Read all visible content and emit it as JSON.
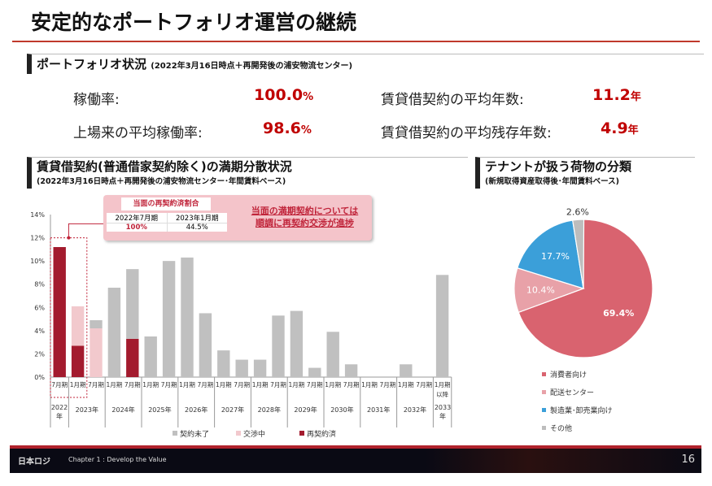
{
  "title": "安定的なポートフォリオ運営の継続",
  "portfolio": {
    "heading": "ポートフォリオ状況",
    "note": "(2022年3月16日時点＋再開発後の浦安物流センター)",
    "metrics": [
      {
        "label": "稼働率:",
        "value": "100.0",
        "unit": "%"
      },
      {
        "label": "上場来の平均稼働率:",
        "value": "98.6",
        "unit": "%"
      },
      {
        "label": "賃貸借契約の平均年数:",
        "value": "11.2",
        "unit": "年"
      },
      {
        "label": "賃貸借契約の平均残存年数:",
        "value": "4.9",
        "unit": "年"
      }
    ]
  },
  "expiry": {
    "heading": "賃貸借契約(普通借家契約除く)の満期分散状況",
    "note": "(2022年3月16日時点＋再開発後の浦安物流センター･年間賃料ベース)",
    "callout": {
      "title": "当面の再契約済割合",
      "col1": "2022年7月期",
      "col2": "2023年1月期",
      "val1": "100%",
      "val2": "44.5%",
      "message_line1": "当面の満期契約については",
      "message_line2": "順調に再契約交渉が進捗"
    }
  },
  "tenant": {
    "heading": "テナントが扱う荷物の分類",
    "note": "(新規取得資産取得後･年間賃料ベース)"
  },
  "chart_data": [
    {
      "type": "bar",
      "stacked": true,
      "ylim": [
        0,
        14
      ],
      "yticks": [
        "0%",
        "2%",
        "4%",
        "6%",
        "8%",
        "10%",
        "12%",
        "14%"
      ],
      "categories": [
        "7月期",
        "1月期",
        "7月期",
        "1月期",
        "7月期",
        "1月期",
        "7月期",
        "1月期",
        "7月期",
        "1月期",
        "7月期",
        "1月期",
        "7月期",
        "1月期",
        "7月期",
        "1月期",
        "7月期",
        "1月期",
        "7月期",
        "1月期",
        "7月期",
        "1月期以降"
      ],
      "years": [
        {
          "label": "2022年",
          "span": 1
        },
        {
          "label": "2023年",
          "span": 2
        },
        {
          "label": "2024年",
          "span": 2
        },
        {
          "label": "2025年",
          "span": 2
        },
        {
          "label": "2026年",
          "span": 2
        },
        {
          "label": "2027年",
          "span": 2
        },
        {
          "label": "2028年",
          "span": 2
        },
        {
          "label": "2029年",
          "span": 2
        },
        {
          "label": "2030年",
          "span": 2
        },
        {
          "label": "2031年",
          "span": 2
        },
        {
          "label": "2032年",
          "span": 2
        },
        {
          "label": "2033年",
          "span": 1
        }
      ],
      "series": [
        {
          "name": "再契約済",
          "color": "#a31b2e",
          "values": [
            11.2,
            2.7,
            0,
            0,
            3.3,
            0,
            0,
            0,
            0,
            0,
            0,
            0,
            0,
            0,
            0,
            0,
            0,
            0,
            0,
            0,
            0,
            0
          ]
        },
        {
          "name": "交渉中",
          "color": "#f2c9cd",
          "values": [
            0,
            3.4,
            4.2,
            0,
            0,
            0,
            0,
            0,
            0,
            0,
            0,
            0,
            0,
            0,
            0,
            0,
            0,
            0,
            0,
            0,
            0,
            0
          ]
        },
        {
          "name": "契約未了",
          "color": "#c0c0c0",
          "values": [
            0,
            0,
            0.7,
            7.7,
            6.0,
            3.5,
            10.0,
            10.3,
            5.5,
            2.3,
            1.5,
            1.5,
            5.3,
            5.7,
            0.8,
            3.9,
            1.1,
            0,
            0,
            1.1,
            0,
            8.8
          ]
        }
      ],
      "legend_order": [
        "契約未了",
        "交渉中",
        "再契約済"
      ],
      "legend": "bottom"
    },
    {
      "type": "pie",
      "start": "top",
      "direction": "clockwise",
      "slices": [
        {
          "name": "消費者向け",
          "value": 69.4,
          "label": "69.4%",
          "color": "#d9636f"
        },
        {
          "name": "配送センター",
          "value": 10.4,
          "label": "10.4%",
          "color": "#e8a1a8"
        },
        {
          "name": "製造業･卸売業向け",
          "value": 17.7,
          "label": "17.7%",
          "color": "#3b9fd9"
        },
        {
          "name": "その他",
          "value": 2.6,
          "label": "2.6%",
          "color": "#bdbdbd"
        }
      ],
      "legend": "bottom"
    }
  ],
  "footer": {
    "logo": "日本ロジ",
    "chapter": "Chapter 1 : Develop the Value",
    "page": "16"
  }
}
